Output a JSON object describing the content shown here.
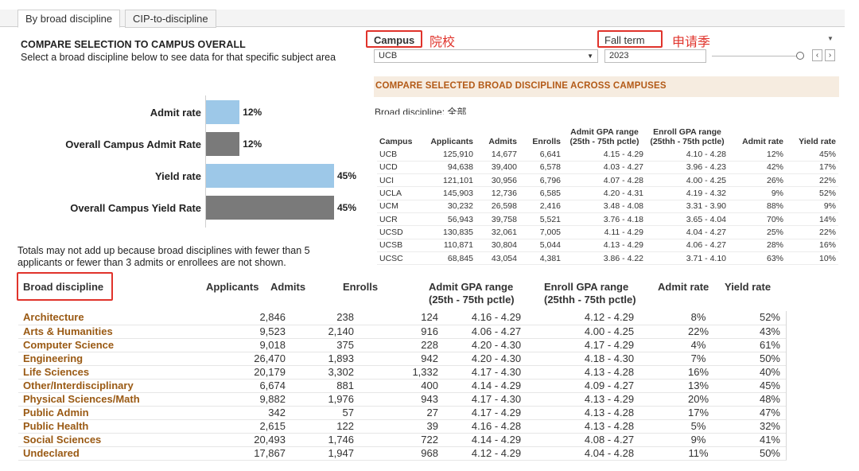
{
  "tabs": [
    "By broad discipline",
    "CIP-to-discipline"
  ],
  "header": {
    "title": "COMPARE SELECTION TO CAMPUS OVERALL",
    "subtitle": "Select a broad discipline below to see data for that specific subject area"
  },
  "filters": {
    "campus_label": "Campus",
    "campus_note": "院校",
    "campus_value": "UCB",
    "term_label": "Fall term",
    "term_note": "申请季",
    "term_value": "2023"
  },
  "colors": {
    "accent_text": "#b35a17",
    "bar_light": "#9dc8e8",
    "bar_dark": "#7a7a7a",
    "annotation": "#e0332b"
  },
  "chart_data": {
    "type": "bar",
    "orientation": "horizontal",
    "categories": [
      "Admit rate",
      "Overall Campus Admit Rate",
      "Yield rate",
      "Overall Campus Yield Rate"
    ],
    "values": [
      12,
      12,
      45,
      45
    ],
    "labels": [
      "12%",
      "12%",
      "45%",
      "45%"
    ],
    "series_color_roles": [
      "selection",
      "campus",
      "selection",
      "campus"
    ],
    "xlim": [
      0,
      100
    ],
    "title": ""
  },
  "footnote": {
    "line1": "Totals may not add up because broad disciplines with fewer than 5",
    "line2": "applicants or fewer than 3 admits or enrollees are not shown."
  },
  "compare_section": {
    "title": "COMPARE SELECTED BROAD DISCIPLINE ACROSS CAMPUSES",
    "discipline_note": "Broad discipline: 全部",
    "headers": {
      "campus": "Campus",
      "applicants": "Applicants",
      "admits": "Admits",
      "enrolls": "Enrolls",
      "admit_gpa_1": "Admit GPA range",
      "admit_gpa_2": "(25th - 75th pctle)",
      "enroll_gpa_1": "Enroll GPA range",
      "enroll_gpa_2": "(25thh - 75th pctle)",
      "admit_rate": "Admit rate",
      "yield_rate": "Yield rate"
    },
    "rows": [
      [
        "UCB",
        "125,910",
        "14,677",
        "6,641",
        "4.15 - 4.29",
        "4.10 - 4.28",
        "12%",
        "45%"
      ],
      [
        "UCD",
        "94,638",
        "39,400",
        "6,578",
        "4.03 - 4.27",
        "3.96 - 4.23",
        "42%",
        "17%"
      ],
      [
        "UCI",
        "121,101",
        "30,956",
        "6,796",
        "4.07 - 4.28",
        "4.00 - 4.25",
        "26%",
        "22%"
      ],
      [
        "UCLA",
        "145,903",
        "12,736",
        "6,585",
        "4.20 - 4.31",
        "4.19 - 4.32",
        "9%",
        "52%"
      ],
      [
        "UCM",
        "30,232",
        "26,598",
        "2,416",
        "3.48 - 4.08",
        "3.31 - 3.90",
        "88%",
        "9%"
      ],
      [
        "UCR",
        "56,943",
        "39,758",
        "5,521",
        "3.76 - 4.18",
        "3.65 - 4.04",
        "70%",
        "14%"
      ],
      [
        "UCSD",
        "130,835",
        "32,061",
        "7,005",
        "4.11 - 4.29",
        "4.04 - 4.27",
        "25%",
        "22%"
      ],
      [
        "UCSB",
        "110,871",
        "30,804",
        "5,044",
        "4.13 - 4.29",
        "4.06 - 4.27",
        "28%",
        "16%"
      ],
      [
        "UCSC",
        "68,845",
        "43,054",
        "4,381",
        "3.86 - 4.22",
        "3.71 - 4.10",
        "63%",
        "10%"
      ]
    ]
  },
  "discipline_table": {
    "headers": {
      "discipline": "Broad discipline",
      "applicants": "Applicants",
      "admits": "Admits",
      "enrolls": "Enrolls",
      "admit_gpa_1": "Admit GPA range",
      "admit_gpa_2": "(25th - 75th pctle)",
      "enroll_gpa_1": "Enroll GPA range",
      "enroll_gpa_2": "(25thh - 75th pctle)",
      "admit_rate": "Admit rate",
      "yield_rate": "Yield rate"
    },
    "rows": [
      [
        "Architecture",
        "2,846",
        "238",
        "124",
        "4.16 - 4.29",
        "4.12 - 4.29",
        "8%",
        "52%"
      ],
      [
        "Arts & Humanities",
        "9,523",
        "2,140",
        "916",
        "4.06 - 4.27",
        "4.00 - 4.25",
        "22%",
        "43%"
      ],
      [
        "Computer Science",
        "9,018",
        "375",
        "228",
        "4.20 - 4.30",
        "4.17 - 4.29",
        "4%",
        "61%"
      ],
      [
        "Engineering",
        "26,470",
        "1,893",
        "942",
        "4.20 - 4.30",
        "4.18 - 4.30",
        "7%",
        "50%"
      ],
      [
        "Life Sciences",
        "20,179",
        "3,302",
        "1,332",
        "4.17 - 4.30",
        "4.13 - 4.28",
        "16%",
        "40%"
      ],
      [
        "Other/Interdisciplinary",
        "6,674",
        "881",
        "400",
        "4.14 - 4.29",
        "4.09 - 4.27",
        "13%",
        "45%"
      ],
      [
        "Physical Sciences/Math",
        "9,882",
        "1,976",
        "943",
        "4.17 - 4.30",
        "4.13 - 4.29",
        "20%",
        "48%"
      ],
      [
        "Public Admin",
        "342",
        "57",
        "27",
        "4.17 - 4.29",
        "4.13 - 4.28",
        "17%",
        "47%"
      ],
      [
        "Public Health",
        "2,615",
        "122",
        "39",
        "4.16 - 4.28",
        "4.13 - 4.28",
        "5%",
        "32%"
      ],
      [
        "Social Sciences",
        "20,493",
        "1,746",
        "722",
        "4.14 - 4.29",
        "4.08 - 4.27",
        "9%",
        "41%"
      ],
      [
        "Undeclared",
        "17,867",
        "1,947",
        "968",
        "4.12 - 4.29",
        "4.04 - 4.28",
        "11%",
        "50%"
      ]
    ]
  }
}
